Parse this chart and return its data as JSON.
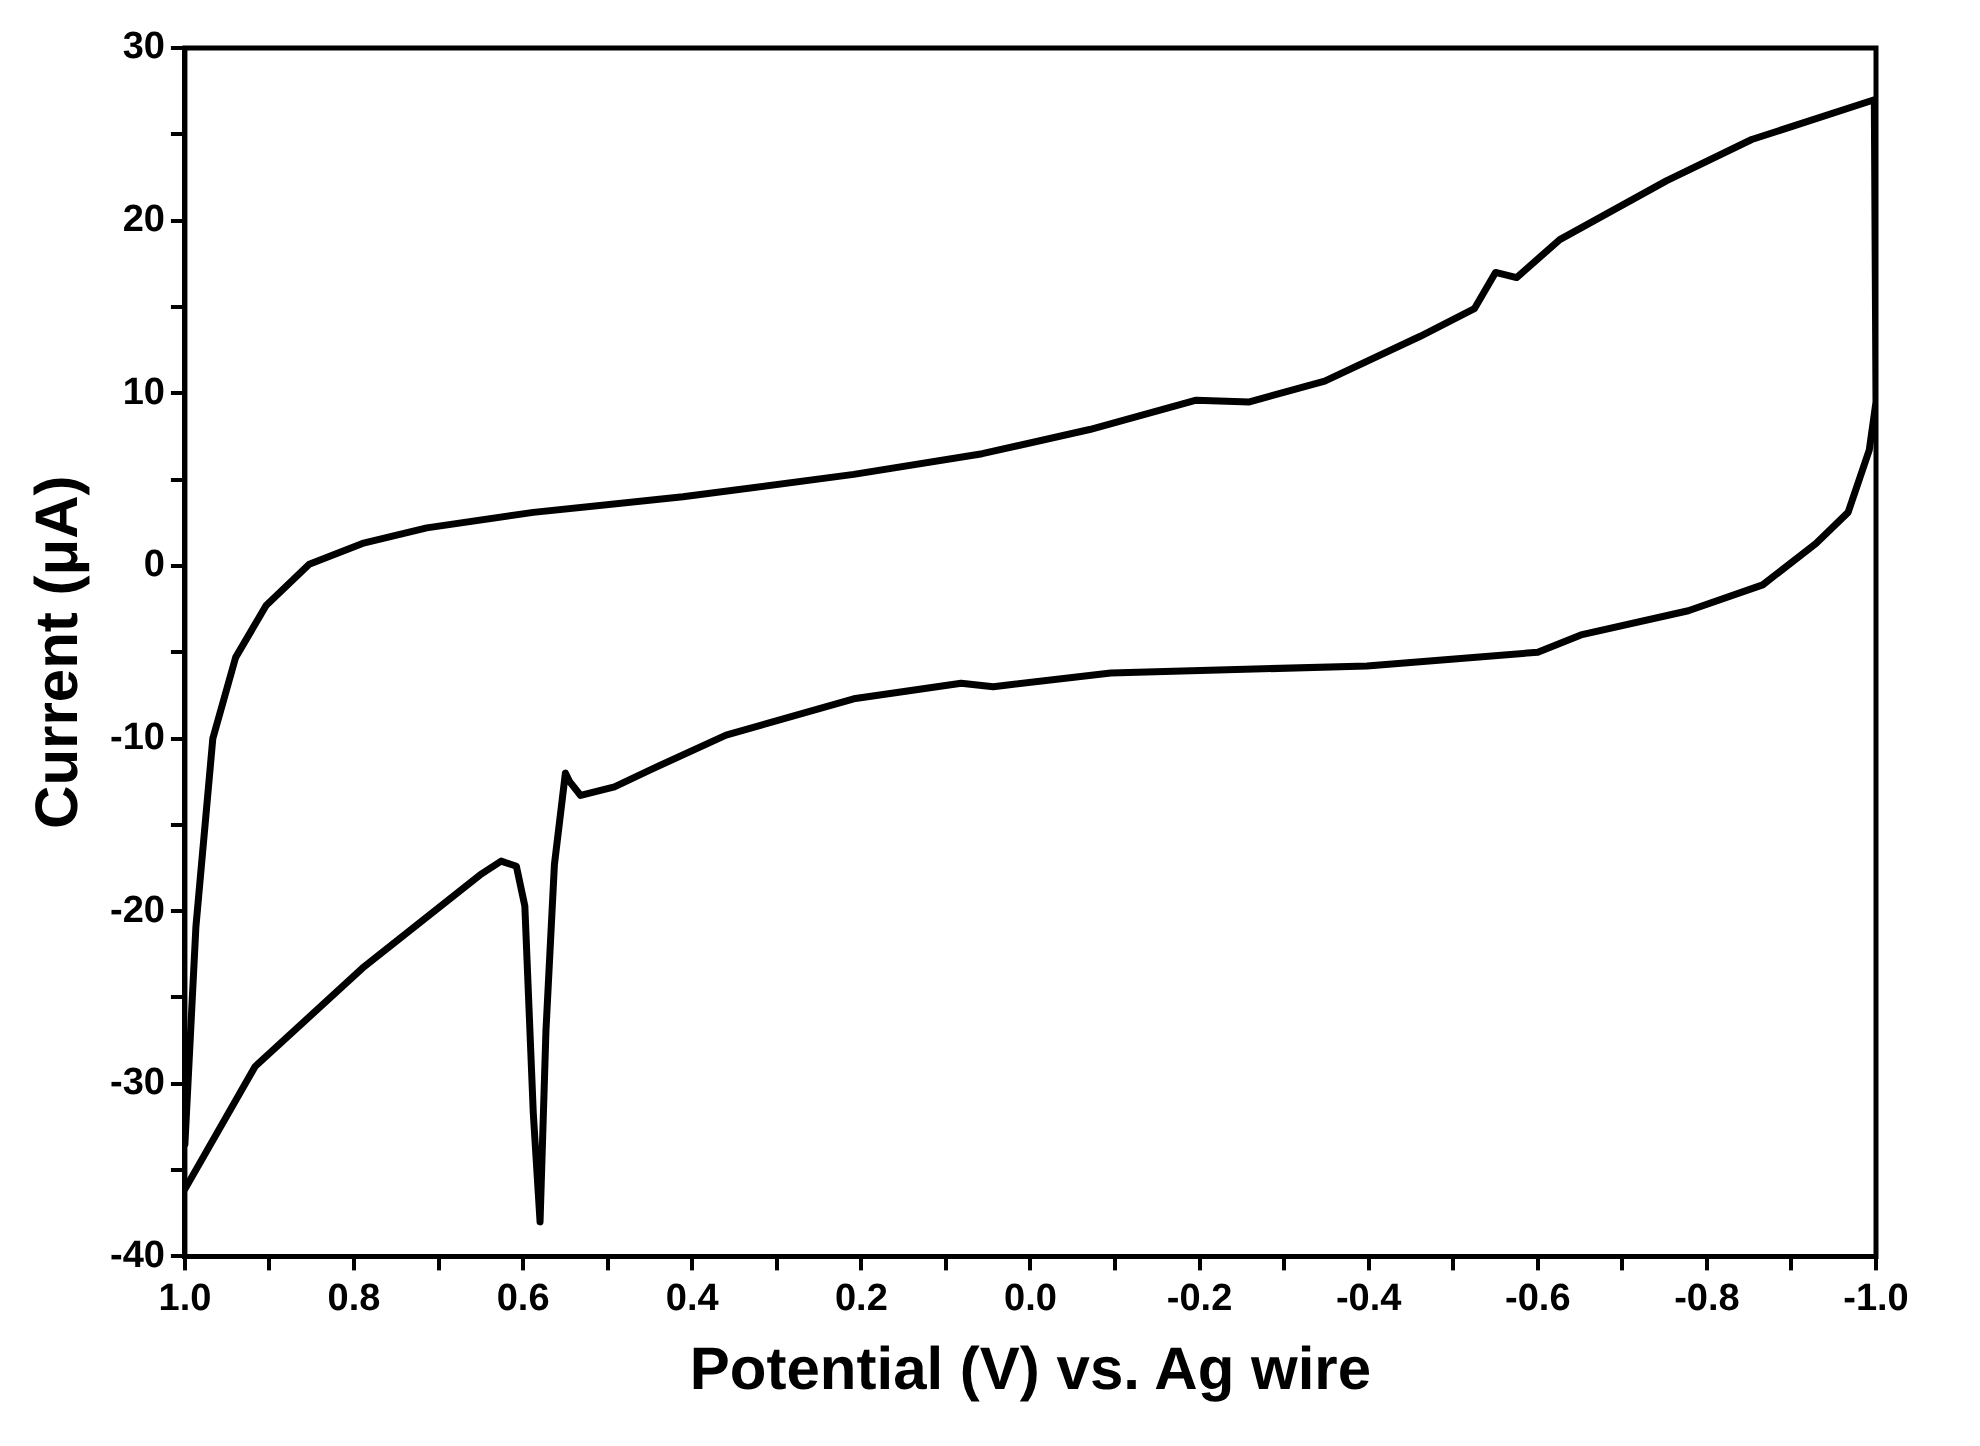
{
  "chart_data": {
    "type": "line",
    "xlabel": "Potential (V) vs. Ag wire",
    "ylabel": "Current (μA)",
    "xlim": [
      1.0,
      -1.0
    ],
    "ylim": [
      -40,
      30
    ],
    "xticks": [
      {
        "value": 1.0,
        "label": "1.0"
      },
      {
        "value": 0.9,
        "label": null
      },
      {
        "value": 0.8,
        "label": "0.8"
      },
      {
        "value": 0.7,
        "label": null
      },
      {
        "value": 0.6,
        "label": "0.6"
      },
      {
        "value": 0.5,
        "label": null
      },
      {
        "value": 0.4,
        "label": "0.4"
      },
      {
        "value": 0.3,
        "label": null
      },
      {
        "value": 0.2,
        "label": "0.2"
      },
      {
        "value": 0.1,
        "label": null
      },
      {
        "value": 0.0,
        "label": "0.0"
      },
      {
        "value": -0.1,
        "label": null
      },
      {
        "value": -0.2,
        "label": "-0.2"
      },
      {
        "value": -0.3,
        "label": null
      },
      {
        "value": -0.4,
        "label": "-0.4"
      },
      {
        "value": -0.5,
        "label": null
      },
      {
        "value": -0.6,
        "label": "-0.6"
      },
      {
        "value": -0.7,
        "label": null
      },
      {
        "value": -0.8,
        "label": "-0.8"
      },
      {
        "value": -0.9,
        "label": null
      },
      {
        "value": -1.0,
        "label": "-1.0"
      }
    ],
    "yticks": [
      -40,
      {
        "value": -35,
        "label": null
      },
      -30,
      {
        "value": -25,
        "label": null
      },
      -20,
      {
        "value": -15,
        "label": null
      },
      -10,
      {
        "value": -5,
        "label": null
      },
      0,
      {
        "value": 5,
        "label": null
      },
      10,
      {
        "value": 15,
        "label": null
      },
      20,
      {
        "value": 25,
        "label": null
      },
      30
    ],
    "grid": false,
    "legend": false,
    "marker": "none",
    "line_style": "solid",
    "series": [
      {
        "color": "#000000",
        "x": [
          1.0,
          0.987,
          0.967,
          0.94,
          0.904,
          0.853,
          0.79,
          0.714,
          0.588,
          0.411,
          0.209,
          0.057,
          -0.07,
          -0.196,
          -0.259,
          -0.348,
          -0.461,
          -0.525,
          -0.55,
          -0.575,
          -0.626,
          -0.752,
          -0.853,
          -0.998,
          -1.0,
          -0.992,
          -0.967,
          -0.929,
          -0.866,
          -0.778,
          -0.651,
          -0.6,
          -0.398,
          -0.095,
          0.044,
          0.082,
          0.209,
          0.36,
          0.449,
          0.492,
          0.532,
          0.545,
          0.55,
          0.563,
          0.573,
          0.58,
          0.588,
          0.598,
          0.608,
          0.626,
          0.651,
          0.79,
          0.917,
          1.0
        ],
        "values": [
          -33.5,
          -20.9,
          -10,
          -5.3,
          -2.3,
          0.1,
          1.3,
          2.2,
          3.1,
          4.0,
          5.3,
          6.5,
          7.9,
          9.6,
          9.5,
          10.7,
          13.3,
          14.9,
          17.0,
          16.7,
          18.9,
          22.3,
          24.7,
          27.0,
          9.5,
          6.7,
          3.1,
          1.3,
          -1.1,
          -2.6,
          -4.0,
          -5.0,
          -5.8,
          -6.2,
          -7.0,
          -6.8,
          -7.7,
          -9.8,
          -11.8,
          -12.8,
          -13.3,
          -12.5,
          -12.0,
          -17.3,
          -26.9,
          -38.0,
          -31.7,
          -19.7,
          -17.4,
          -17.1,
          -17.9,
          -23.3,
          -29.0,
          -36.1
        ]
      }
    ]
  }
}
